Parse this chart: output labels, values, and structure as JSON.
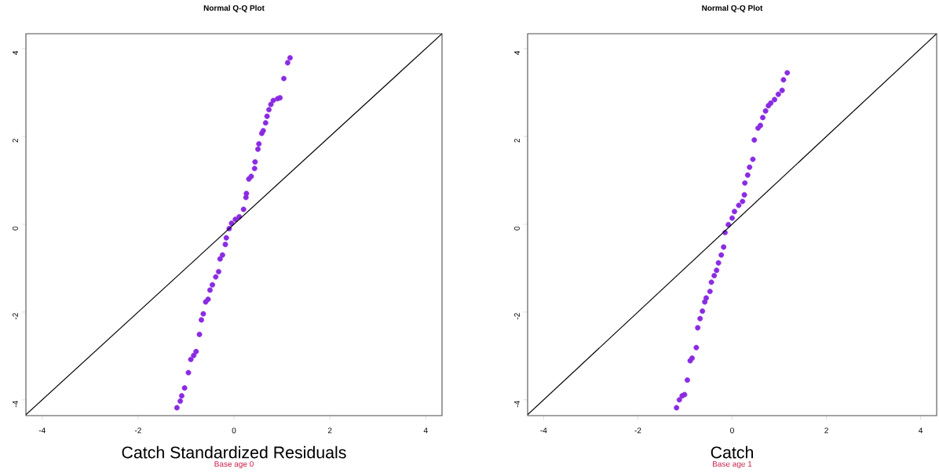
{
  "chart_data": [
    {
      "type": "scatter",
      "title": "Normal Q-Q Plot",
      "xlabel": "Catch Standardized Residuals",
      "annotations": [
        "Base age 0"
      ],
      "xlim": [
        -4.34,
        4.34
      ],
      "ylim": [
        -4.36,
        4.34
      ],
      "xticks": [
        -4,
        -2,
        0,
        2,
        4
      ],
      "yticks": [
        -4,
        -2,
        0,
        2,
        4
      ],
      "marker": "circle",
      "series": [
        {
          "color": "#8a2be2",
          "x": [
            -1.19,
            -1.12,
            -1.09,
            -1.03,
            -0.95,
            -0.9,
            -0.84,
            -0.79,
            -0.72,
            -0.68,
            -0.64,
            -0.59,
            -0.54,
            -0.5,
            -0.45,
            -0.38,
            -0.32,
            -0.29,
            -0.24,
            -0.18,
            -0.16,
            -0.1,
            -0.05,
            0.03,
            0.11,
            0.2,
            0.25,
            0.26,
            0.31,
            0.36,
            0.43,
            0.44,
            0.5,
            0.52,
            0.58,
            0.61,
            0.66,
            0.69,
            0.73,
            0.77,
            0.82,
            0.91,
            0.96,
            1.04,
            1.12,
            1.17
          ],
          "values": [
            -4.18,
            -4.03,
            -3.91,
            -3.73,
            -3.38,
            -3.08,
            -2.99,
            -2.9,
            -2.51,
            -2.18,
            -2.04,
            -1.77,
            -1.71,
            -1.5,
            -1.38,
            -1.2,
            -1.08,
            -0.79,
            -0.7,
            -0.46,
            -0.31,
            -0.1,
            0.02,
            0.11,
            0.17,
            0.34,
            0.61,
            0.7,
            1.03,
            1.09,
            1.27,
            1.42,
            1.71,
            1.83,
            2.07,
            2.13,
            2.31,
            2.46,
            2.61,
            2.73,
            2.82,
            2.86,
            2.88,
            3.32,
            3.68,
            3.79
          ]
        },
        {
          "type": "line",
          "marker": "none",
          "color": "#000000",
          "x": [
            -4.34,
            4.34
          ],
          "values": [
            -4.34,
            4.34
          ]
        }
      ]
    },
    {
      "type": "scatter",
      "title": "Normal Q-Q Plot",
      "xlabel": "Catch",
      "annotations": [
        "Base age 1"
      ],
      "xlim": [
        -4.34,
        4.34
      ],
      "ylim": [
        -4.36,
        4.34
      ],
      "xticks": [
        -4,
        -2,
        0,
        2,
        4
      ],
      "yticks": [
        -4,
        -2,
        0,
        2,
        4
      ],
      "marker": "circle",
      "series": [
        {
          "color": "#8a2be2",
          "x": [
            -1.18,
            -1.12,
            -1.06,
            -1.01,
            -0.95,
            -0.89,
            -0.85,
            -0.76,
            -0.73,
            -0.68,
            -0.63,
            -0.58,
            -0.55,
            -0.47,
            -0.44,
            -0.38,
            -0.33,
            -0.29,
            -0.23,
            -0.18,
            -0.15,
            -0.08,
            0.0,
            0.05,
            0.14,
            0.22,
            0.26,
            0.27,
            0.33,
            0.37,
            0.44,
            0.47,
            0.55,
            0.6,
            0.65,
            0.71,
            0.77,
            0.82,
            0.9,
            0.98,
            1.06,
            1.09,
            1.17
          ],
          "values": [
            -4.18,
            -4.0,
            -3.91,
            -3.88,
            -3.55,
            -3.11,
            -3.05,
            -2.81,
            -2.36,
            -2.15,
            -1.98,
            -1.77,
            -1.68,
            -1.53,
            -1.32,
            -1.17,
            -1.05,
            -0.88,
            -0.7,
            -0.52,
            -0.19,
            -0.01,
            0.14,
            0.29,
            0.43,
            0.52,
            0.67,
            0.94,
            1.12,
            1.3,
            1.48,
            1.92,
            2.19,
            2.25,
            2.43,
            2.58,
            2.7,
            2.76,
            2.84,
            2.96,
            3.05,
            3.29,
            3.45
          ]
        },
        {
          "type": "line",
          "marker": "none",
          "color": "#000000",
          "x": [
            -4.34,
            4.34
          ],
          "values": [
            -4.34,
            4.34
          ]
        }
      ]
    }
  ]
}
